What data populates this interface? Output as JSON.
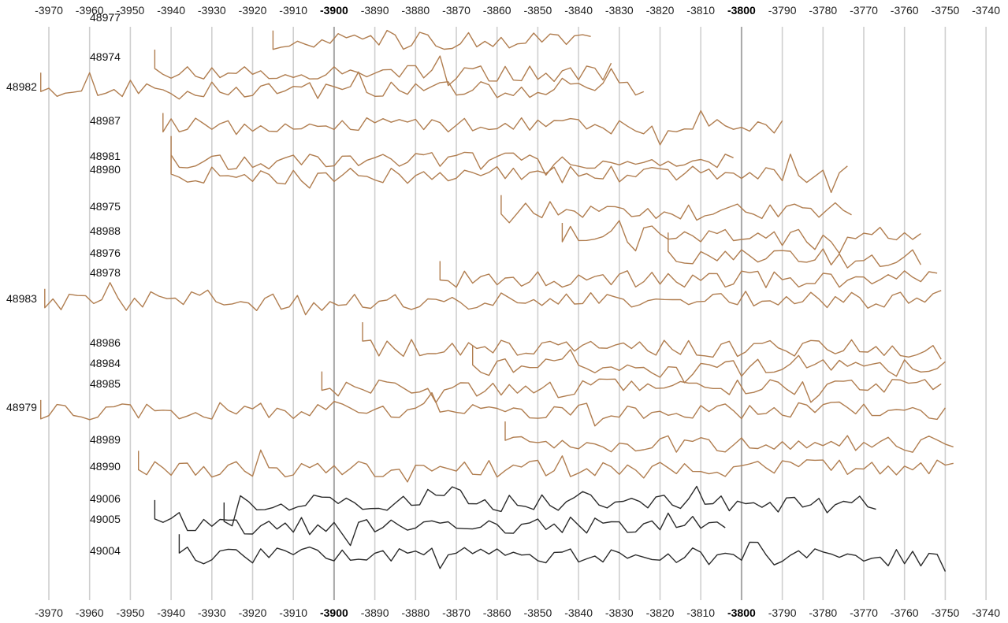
{
  "chart_data": {
    "type": "line",
    "title": "",
    "xlabel": "",
    "ylabel": "",
    "x_axis_position": "top and bottom",
    "xlim": [
      -3972,
      -3740
    ],
    "grid": "vertical gridlines every 10 units, bold at -3900 and -3800",
    "x_ticks": [
      "-3970",
      "-3960",
      "-3950",
      "-3940",
      "-3930",
      "-3920",
      "-3910",
      "-3900",
      "-3890",
      "-3880",
      "-3870",
      "-3860",
      "-3850",
      "-3840",
      "-3830",
      "-3820",
      "-3810",
      "-3800",
      "-3790",
      "-3780",
      "-3770",
      "-3760",
      "-3750",
      "-3740"
    ],
    "bold_ticks": [
      "-3900",
      "-3800"
    ],
    "colors": {
      "brown": "#b07d4f",
      "brown_dark": "#8a5a32",
      "black": "#2a2a2a"
    },
    "series": [
      {
        "name": "48977",
        "start": -3915,
        "end": -3836,
        "color": "brown"
      },
      {
        "name": "48974",
        "start": -3944,
        "end": -3831,
        "color": "brown"
      },
      {
        "name": "48982",
        "start": -3972,
        "end": -3823,
        "color": "brown"
      },
      {
        "name": "48987",
        "start": -3942,
        "end": -3790,
        "color": "brown"
      },
      {
        "name": "48981",
        "start": -3940,
        "end": -3801,
        "color": "brown"
      },
      {
        "name": "48980",
        "start": -3940,
        "end": -3773,
        "color": "brown"
      },
      {
        "name": "48975",
        "start": -3859,
        "end": -3773,
        "color": "brown"
      },
      {
        "name": "48988",
        "start": -3844,
        "end": -3756,
        "color": "brown"
      },
      {
        "name": "48976",
        "start": -3818,
        "end": -3756,
        "color": "brown"
      },
      {
        "name": "48978",
        "start": -3874,
        "end": -3752,
        "color": "brown"
      },
      {
        "name": "48983",
        "start": -3971,
        "end": -3751,
        "color": "brown"
      },
      {
        "name": "48986",
        "start": -3893,
        "end": -3750,
        "color": "brown"
      },
      {
        "name": "48984",
        "start": -3866,
        "end": -3749,
        "color": "brown"
      },
      {
        "name": "48985",
        "start": -3903,
        "end": -3750,
        "color": "brown"
      },
      {
        "name": "48979",
        "start": -3972,
        "end": -3749,
        "color": "brown"
      },
      {
        "name": "48989",
        "start": -3858,
        "end": -3748,
        "color": "brown"
      },
      {
        "name": "48990",
        "start": -3948,
        "end": -3748,
        "color": "brown"
      },
      {
        "name": "49006",
        "start": -3927,
        "end": -3767,
        "color": "black"
      },
      {
        "name": "49005",
        "start": -3944,
        "end": -3803,
        "color": "black"
      },
      {
        "name": "49004",
        "start": -3938,
        "end": -3750,
        "color": "black"
      }
    ]
  }
}
